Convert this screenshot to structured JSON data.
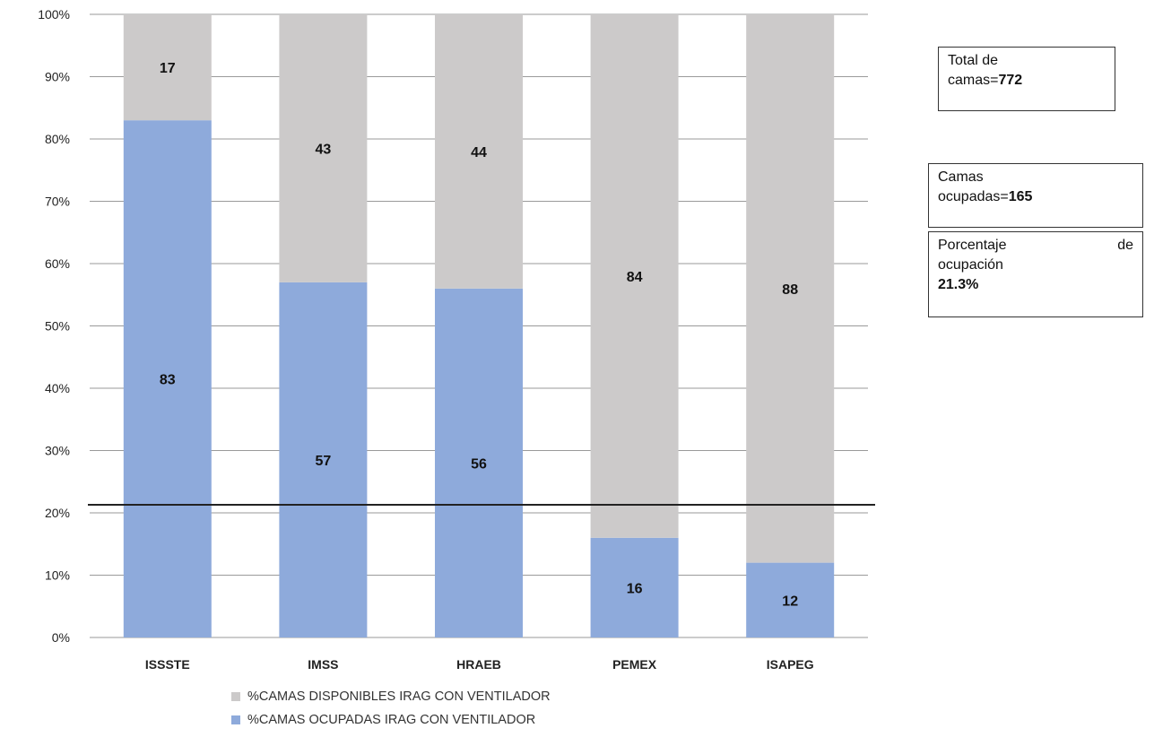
{
  "chart_data": {
    "type": "bar",
    "stacked": true,
    "categories": [
      "ISSSTE",
      "IMSS",
      "HRAEB",
      "PEMEX",
      "ISAPEG"
    ],
    "series": [
      {
        "name": "%CAMAS OCUPADAS IRAG CON VENTILADOR",
        "values": [
          83,
          57,
          56,
          16,
          12
        ],
        "color": "#8eaadb"
      },
      {
        "name": "%CAMAS DISPONIBLES IRAG  CON VENTILADOR",
        "values": [
          17,
          43,
          44,
          84,
          88
        ],
        "color": "#cccaca"
      }
    ],
    "y_ticks": [
      "0%",
      "10%",
      "20%",
      "30%",
      "40%",
      "50%",
      "60%",
      "70%",
      "80%",
      "90%",
      "100%"
    ],
    "ylim": [
      0,
      100
    ],
    "reference_line": 21.3,
    "grid": true,
    "legend_position": "bottom"
  },
  "legend": {
    "available_label": "%CAMAS DISPONIBLES IRAG  CON VENTILADOR",
    "occupied_label": "%CAMAS OCUPADAS IRAG CON VENTILADOR"
  },
  "info_boxes": {
    "total": {
      "line1": "Total de",
      "line2_prefix": "camas=",
      "value": "772"
    },
    "occupied": {
      "line1": "Camas",
      "line2_prefix": "ocupadas=",
      "value": "165"
    },
    "percent": {
      "word1": "Porcentaje",
      "word2": "de",
      "line2": "ocupación",
      "value": "21.3%"
    }
  },
  "colors": {
    "occupied": "#8eaadb",
    "available": "#cccaca",
    "grid": "#9a9a9a",
    "refline": "#222222"
  }
}
